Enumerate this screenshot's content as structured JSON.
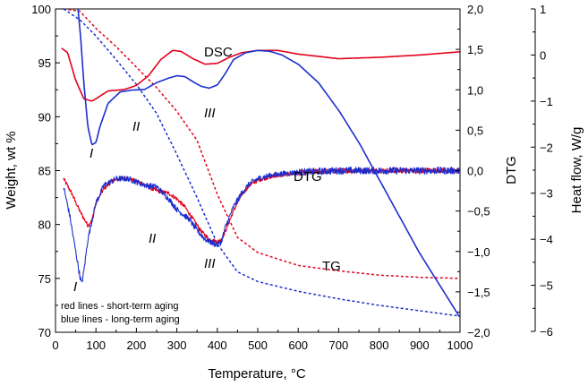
{
  "chart_data": {
    "type": "line",
    "x": {
      "label": "Temperature, °C",
      "range": [
        0,
        1000
      ],
      "ticks": [
        0,
        100,
        200,
        300,
        400,
        500,
        600,
        700,
        800,
        900,
        1000
      ],
      "tick_labels": [
        "0",
        "100",
        "200",
        "300",
        "400",
        "500",
        "600",
        "700",
        "800",
        "900",
        "1000"
      ]
    },
    "y_left": {
      "label": "Weight, wt %",
      "range": [
        70,
        100
      ],
      "ticks": [
        70,
        75,
        80,
        85,
        90,
        95,
        100
      ],
      "tick_labels": [
        "70",
        "75",
        "80",
        "85",
        "90",
        "95",
        "100"
      ]
    },
    "y_right_dtg": {
      "label": "DTG",
      "range": [
        -2.0,
        2.0
      ],
      "ticks": [
        2,
        1.5,
        1,
        0.5,
        0,
        -0.5,
        -1,
        -1.5,
        -2
      ],
      "tick_labels": [
        "2,0",
        "1,5",
        "1,0",
        "0,5",
        "0,0",
        "−0,5",
        "−1,0",
        "−1,5",
        "−2,0"
      ]
    },
    "y_right_hf": {
      "label": "Heat flow, W/g",
      "range": [
        -6,
        1
      ],
      "ticks": [
        1,
        0,
        -1,
        -2,
        -3,
        -4,
        -5,
        -6
      ],
      "tick_labels": [
        "1",
        "0",
        "−1",
        "−2",
        "−3",
        "−4",
        "−5",
        "−6"
      ]
    },
    "colors": {
      "short_term": "#e3001b",
      "long_term": "#1a2ecf"
    },
    "series": [
      {
        "name": "TG short-term",
        "axis": "left",
        "color": "short_term",
        "style": "dotted",
        "x": [
          20,
          60,
          100,
          150,
          200,
          250,
          300,
          350,
          400,
          450,
          500,
          600,
          700,
          800,
          900,
          1000
        ],
        "y": [
          100,
          99.8,
          98.2,
          96.5,
          94.6,
          92.7,
          90.5,
          87.8,
          82.8,
          78.8,
          77.4,
          76.2,
          75.7,
          75.3,
          75.1,
          75.0
        ]
      },
      {
        "name": "TG long-term",
        "axis": "left",
        "color": "long_term",
        "style": "dotted",
        "x": [
          20,
          60,
          100,
          150,
          200,
          250,
          300,
          350,
          400,
          450,
          500,
          600,
          700,
          800,
          900,
          1000
        ],
        "y": [
          100,
          99.0,
          97.5,
          95.3,
          93.0,
          90.3,
          86.5,
          82.5,
          78.2,
          75.6,
          74.7,
          73.8,
          73.1,
          72.5,
          72.0,
          71.5
        ]
      },
      {
        "name": "DSC short-term",
        "axis": "heatflow",
        "color": "short_term",
        "style": "solid",
        "x": [
          15,
          30,
          50,
          70,
          90,
          100,
          130,
          170,
          200,
          230,
          260,
          290,
          310,
          340,
          370,
          400,
          430,
          460,
          500,
          550,
          600,
          700,
          800,
          900,
          1000
        ],
        "y": [
          0.15,
          0.05,
          -0.55,
          -0.95,
          -1.0,
          -0.95,
          -0.78,
          -0.75,
          -0.66,
          -0.45,
          -0.1,
          0.1,
          0.08,
          -0.08,
          -0.2,
          -0.18,
          -0.05,
          0.05,
          0.1,
          0.1,
          0.02,
          -0.08,
          -0.05,
          0.0,
          0.07
        ]
      },
      {
        "name": "DSC long-term",
        "axis": "heatflow",
        "color": "long_term",
        "style": "solid",
        "x": [
          55,
          62,
          70,
          80,
          90,
          100,
          110,
          130,
          160,
          190,
          220,
          250,
          280,
          300,
          320,
          340,
          360,
          380,
          400,
          420,
          440,
          470,
          500,
          530,
          560,
          600,
          650,
          700,
          750,
          800,
          850,
          900,
          950,
          1000
        ],
        "y": [
          1.05,
          0.4,
          -0.6,
          -1.55,
          -1.95,
          -1.9,
          -1.55,
          -1.05,
          -0.8,
          -0.76,
          -0.75,
          -0.6,
          -0.5,
          -0.45,
          -0.47,
          -0.58,
          -0.68,
          -0.72,
          -0.65,
          -0.4,
          -0.1,
          0.05,
          0.1,
          0.08,
          0.0,
          -0.2,
          -0.6,
          -1.2,
          -1.9,
          -2.7,
          -3.5,
          -4.3,
          -5.0,
          -5.7
        ]
      },
      {
        "name": "DTG short-term",
        "axis": "dtg",
        "color": "short_term",
        "style": "noisy",
        "x": [
          20,
          40,
          60,
          80,
          90,
          100,
          120,
          140,
          160,
          180,
          200,
          220,
          240,
          260,
          280,
          300,
          320,
          340,
          360,
          380,
          400,
          410,
          420,
          440,
          460,
          480,
          500,
          520,
          550,
          600,
          650,
          700,
          800,
          900,
          1000
        ],
        "y": [
          -0.1,
          -0.28,
          -0.5,
          -0.68,
          -0.62,
          -0.4,
          -0.22,
          -0.13,
          -0.1,
          -0.1,
          -0.13,
          -0.17,
          -0.23,
          -0.26,
          -0.28,
          -0.35,
          -0.45,
          -0.6,
          -0.75,
          -0.85,
          -0.88,
          -0.85,
          -0.75,
          -0.5,
          -0.3,
          -0.18,
          -0.12,
          -0.09,
          -0.06,
          -0.03,
          -0.01,
          0.0,
          0.0,
          0.0,
          0.0
        ]
      },
      {
        "name": "DTG long-term",
        "axis": "dtg",
        "color": "long_term",
        "style": "noisy",
        "x": [
          20,
          35,
          50,
          60,
          65,
          70,
          80,
          100,
          120,
          150,
          180,
          220,
          250,
          280,
          300,
          330,
          350,
          370,
          390,
          400,
          410,
          420,
          440,
          460,
          480,
          500,
          530,
          560,
          600,
          700,
          800,
          900,
          1000
        ],
        "y": [
          -0.2,
          -0.55,
          -1.0,
          -1.3,
          -1.4,
          -1.25,
          -0.85,
          -0.4,
          -0.18,
          -0.1,
          -0.1,
          -0.18,
          -0.2,
          -0.35,
          -0.48,
          -0.6,
          -0.74,
          -0.85,
          -0.9,
          -0.92,
          -0.88,
          -0.7,
          -0.45,
          -0.28,
          -0.16,
          -0.1,
          -0.06,
          -0.04,
          -0.02,
          0.0,
          0.0,
          0.0,
          0.0
        ]
      }
    ],
    "annotations": {
      "dsc": "DSC",
      "dtg": "DTG",
      "tg": "TG",
      "roman_dsc_1": "I",
      "roman_dsc_2": "II",
      "roman_dsc_3": "III",
      "roman_dtg_1": "I",
      "roman_dtg_2": "II",
      "roman_dtg_3": "III"
    },
    "legend": {
      "line1": "red lines - short-term aging",
      "line2": "blue lines - long-term aging",
      "position": "bottom-left"
    }
  }
}
